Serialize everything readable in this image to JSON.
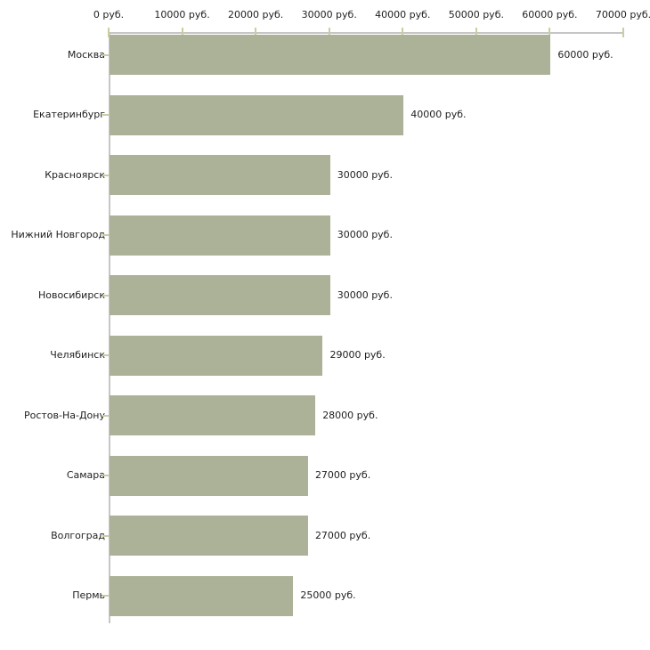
{
  "chart_data": {
    "type": "bar",
    "orientation": "horizontal",
    "title": "",
    "xlabel": "",
    "ylabel": "",
    "xlim": [
      0,
      70000
    ],
    "grid": false,
    "legend": "none",
    "unit_suffix": " руб.",
    "x_tick_values": [
      0,
      10000,
      20000,
      30000,
      40000,
      50000,
      60000,
      70000
    ],
    "x_tick_labels": [
      "0 руб.",
      "10000 руб.",
      "20000 руб.",
      "30000 руб.",
      "40000 руб.",
      "50000 руб.",
      "60000 руб.",
      "70000 руб."
    ],
    "categories": [
      "Москва",
      "Екатеринбург",
      "Красноярск",
      "Нижний Новгород",
      "Новосибирск",
      "Челябинск",
      "Ростов-На-Дону",
      "Самара",
      "Волгоград",
      "Пермь"
    ],
    "values": [
      60000,
      40000,
      30000,
      30000,
      30000,
      29000,
      28000,
      27000,
      27000,
      25000
    ],
    "value_labels": [
      "60000 руб.",
      "40000 руб.",
      "30000 руб.",
      "30000 руб.",
      "30000 руб.",
      "29000 руб.",
      "28000 руб.",
      "27000 руб.",
      "27000 руб.",
      "25000 руб."
    ],
    "colors": {
      "bar_fill": "#acb298",
      "axis_line": "#c6c6c6",
      "tick_mark": "#cbcd9f",
      "text": "#1f1f1f",
      "background": "#ffffff"
    }
  }
}
